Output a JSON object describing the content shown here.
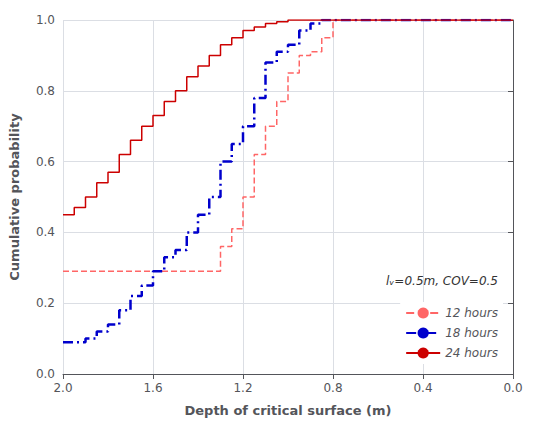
{
  "chart_data": {
    "type": "line",
    "xlabel": "Depth of critical surface (m)",
    "ylabel": "Cumulative probability",
    "xlim": [
      2.0,
      0.0
    ],
    "ylim": [
      0.0,
      1.0
    ],
    "xticks": [
      {
        "value": 2.0,
        "label": "2.0"
      },
      1.6,
      1.2,
      0.8,
      0.4,
      {
        "value": 0.0,
        "label": "0.0"
      }
    ],
    "yticks": [
      {
        "value": 0.0,
        "label": "0.0"
      },
      0.2,
      0.4,
      0.6,
      0.8,
      {
        "value": 1.0,
        "label": "1.0"
      }
    ],
    "grid": true,
    "legend": "lower right",
    "legend_title": "lᵥ=0.5m, COV=0.5",
    "series": [
      {
        "name": "12 hours",
        "color": "#FF6666",
        "line_style": "dashed",
        "x": [
          2.0,
          1.3,
          1.3,
          1.25,
          1.25,
          1.2,
          1.2,
          1.15,
          1.15,
          1.1,
          1.1,
          1.05,
          1.05,
          1.0,
          1.0,
          0.95,
          0.95,
          0.9,
          0.9,
          0.85,
          0.85,
          0.8,
          0.8,
          0.0
        ],
        "values": [
          0.29,
          0.29,
          0.36,
          0.36,
          0.41,
          0.41,
          0.5,
          0.5,
          0.62,
          0.62,
          0.7,
          0.7,
          0.77,
          0.77,
          0.85,
          0.85,
          0.9,
          0.9,
          0.91,
          0.91,
          0.95,
          0.95,
          1.0,
          1.0
        ]
      },
      {
        "name": "18 hours",
        "color": "#0000CC",
        "line_style": "dashdot",
        "x": [
          2.0,
          1.9,
          1.9,
          1.85,
          1.85,
          1.8,
          1.8,
          1.75,
          1.75,
          1.7,
          1.7,
          1.65,
          1.65,
          1.6,
          1.6,
          1.55,
          1.55,
          1.5,
          1.5,
          1.45,
          1.45,
          1.4,
          1.4,
          1.35,
          1.35,
          1.3,
          1.3,
          1.25,
          1.25,
          1.2,
          1.2,
          1.15,
          1.15,
          1.1,
          1.1,
          1.05,
          1.05,
          1.0,
          1.0,
          0.95,
          0.95,
          0.9,
          0.9,
          0.85,
          0.85,
          0.82,
          0.82,
          0.0
        ],
        "values": [
          0.09,
          0.09,
          0.1,
          0.1,
          0.12,
          0.12,
          0.14,
          0.14,
          0.18,
          0.18,
          0.22,
          0.22,
          0.25,
          0.25,
          0.29,
          0.29,
          0.33,
          0.33,
          0.35,
          0.35,
          0.4,
          0.4,
          0.45,
          0.45,
          0.5,
          0.5,
          0.6,
          0.6,
          0.65,
          0.65,
          0.7,
          0.7,
          0.78,
          0.78,
          0.88,
          0.88,
          0.91,
          0.91,
          0.93,
          0.93,
          0.97,
          0.97,
          0.99,
          0.99,
          1.0,
          1.0,
          1.0,
          1.0
        ]
      },
      {
        "name": "24 hours",
        "color": "#CC0000",
        "line_style": "solid",
        "x": [
          2.0,
          1.95,
          1.95,
          1.9,
          1.9,
          1.85,
          1.85,
          1.8,
          1.8,
          1.75,
          1.75,
          1.7,
          1.7,
          1.65,
          1.65,
          1.6,
          1.6,
          1.55,
          1.55,
          1.5,
          1.5,
          1.45,
          1.45,
          1.4,
          1.4,
          1.35,
          1.35,
          1.3,
          1.3,
          1.25,
          1.25,
          1.2,
          1.2,
          1.15,
          1.15,
          1.1,
          1.1,
          1.05,
          1.05,
          1.0,
          1.0,
          0.0
        ],
        "values": [
          0.45,
          0.45,
          0.47,
          0.47,
          0.5,
          0.5,
          0.54,
          0.54,
          0.57,
          0.57,
          0.62,
          0.62,
          0.66,
          0.66,
          0.7,
          0.7,
          0.73,
          0.73,
          0.77,
          0.77,
          0.8,
          0.8,
          0.84,
          0.84,
          0.87,
          0.87,
          0.9,
          0.9,
          0.93,
          0.93,
          0.95,
          0.95,
          0.97,
          0.97,
          0.98,
          0.98,
          0.99,
          0.99,
          0.995,
          0.995,
          1.0,
          1.0
        ]
      }
    ]
  }
}
